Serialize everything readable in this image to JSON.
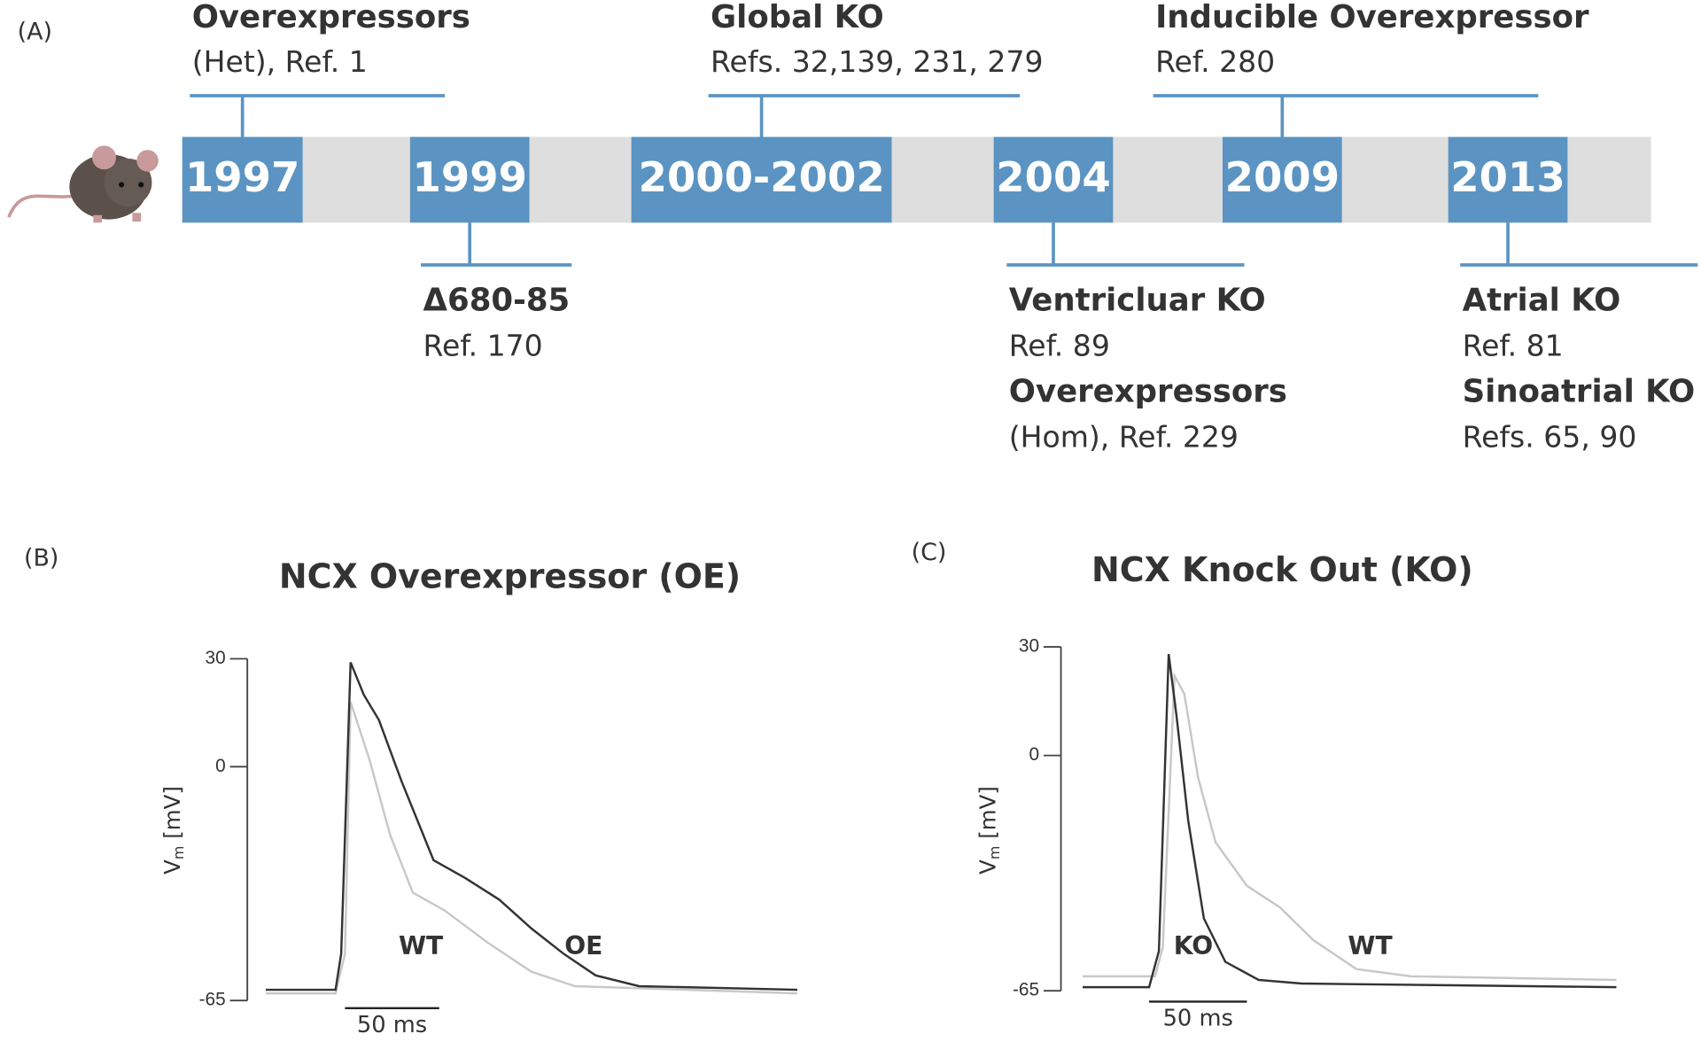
{
  "timeline": {
    "label": "(A)",
    "events": [
      {
        "year": "1997",
        "side": "above",
        "lines": [
          {
            "text": "Overexpressors",
            "bold": true
          },
          {
            "text": "(Het),  Ref. 1",
            "bold": false
          }
        ]
      },
      {
        "year": "1999",
        "side": "below",
        "lines": [
          {
            "text": "Δ680-85",
            "bold": true
          },
          {
            "text": "Ref. 170",
            "bold": false
          }
        ]
      },
      {
        "year": "2000-2002",
        "side": "above",
        "lines": [
          {
            "text": "Global KO",
            "bold": true
          },
          {
            "text": "Refs. 32,139, 231, 279",
            "bold": false
          }
        ]
      },
      {
        "year": "2004",
        "side": "below",
        "lines": [
          {
            "text": "Ventricluar KO",
            "bold": true
          },
          {
            "text": "Ref. 89",
            "bold": false
          },
          {
            "text": "Overexpressors",
            "bold": true
          },
          {
            "text": "(Hom), Ref. 229",
            "bold": false
          }
        ]
      },
      {
        "year": "2009",
        "side": "above",
        "lines": [
          {
            "text": "Inducible Overexpressor",
            "bold": true
          },
          {
            "text": "Ref. 280",
            "bold": false
          }
        ]
      },
      {
        "year": "2013",
        "side": "below",
        "lines": [
          {
            "text": "Atrial KO",
            "bold": true
          },
          {
            "text": "Ref. 81",
            "bold": false
          },
          {
            "text": "Sinoatrial KO",
            "bold": true
          },
          {
            "text": "Refs. 65, 90",
            "bold": false
          }
        ]
      }
    ]
  },
  "chart_data": [
    {
      "type": "line",
      "panel": "(B)",
      "title": "NCX Overexpressor (OE)",
      "ylabel": "V",
      "ylabel_sub": "m",
      "ylabel_unit": "[mV]",
      "ylim": [
        -65,
        30
      ],
      "yticks": [
        30,
        0,
        -65
      ],
      "xlim": [
        0,
        282
      ],
      "scalebar": {
        "value": 50,
        "label": "50 ms"
      },
      "series": [
        {
          "name": "OE",
          "color": "#333333",
          "x": [
            0,
            37,
            40,
            45,
            52,
            60,
            72,
            89,
            106,
            124,
            141,
            158,
            175,
            198,
            282
          ],
          "values": [
            -62,
            -62,
            -52,
            29,
            20,
            13,
            -4,
            -26,
            -31,
            -37,
            -45,
            -52,
            -58,
            -61,
            -62
          ]
        },
        {
          "name": "WT",
          "color": "#c8c8c8",
          "x": [
            0,
            37,
            42,
            45,
            55,
            66,
            78,
            95,
            118,
            141,
            164,
            282
          ],
          "values": [
            -63,
            -63,
            -52,
            18,
            2,
            -19,
            -35,
            -40,
            -49,
            -57,
            -61,
            -63
          ]
        }
      ]
    },
    {
      "type": "line",
      "panel": "(C)",
      "title": "NCX Knock Out (KO)",
      "ylabel": "V",
      "ylabel_sub": "m",
      "ylabel_unit": "[mV]",
      "ylim": [
        -65,
        30
      ],
      "yticks": [
        30,
        0,
        -65
      ],
      "xlim": [
        0,
        273
      ],
      "scalebar": {
        "value": 50,
        "label": "50 ms"
      },
      "series": [
        {
          "name": "KO",
          "color": "#333333",
          "x": [
            0,
            34,
            39,
            44,
            48,
            54,
            62,
            73,
            90,
            112,
            273
          ],
          "values": [
            -64,
            -64,
            -54,
            28,
            11,
            -18,
            -45,
            -57,
            -62,
            -63,
            -64
          ]
        },
        {
          "name": "WT",
          "color": "#c8c8c8",
          "x": [
            0,
            37,
            41,
            47,
            52,
            59,
            68,
            84,
            101,
            118,
            140,
            168,
            273
          ],
          "values": [
            -61,
            -61,
            -53,
            22,
            17,
            -6,
            -24,
            -36,
            -42,
            -51,
            -59,
            -61,
            -62
          ]
        }
      ]
    }
  ]
}
